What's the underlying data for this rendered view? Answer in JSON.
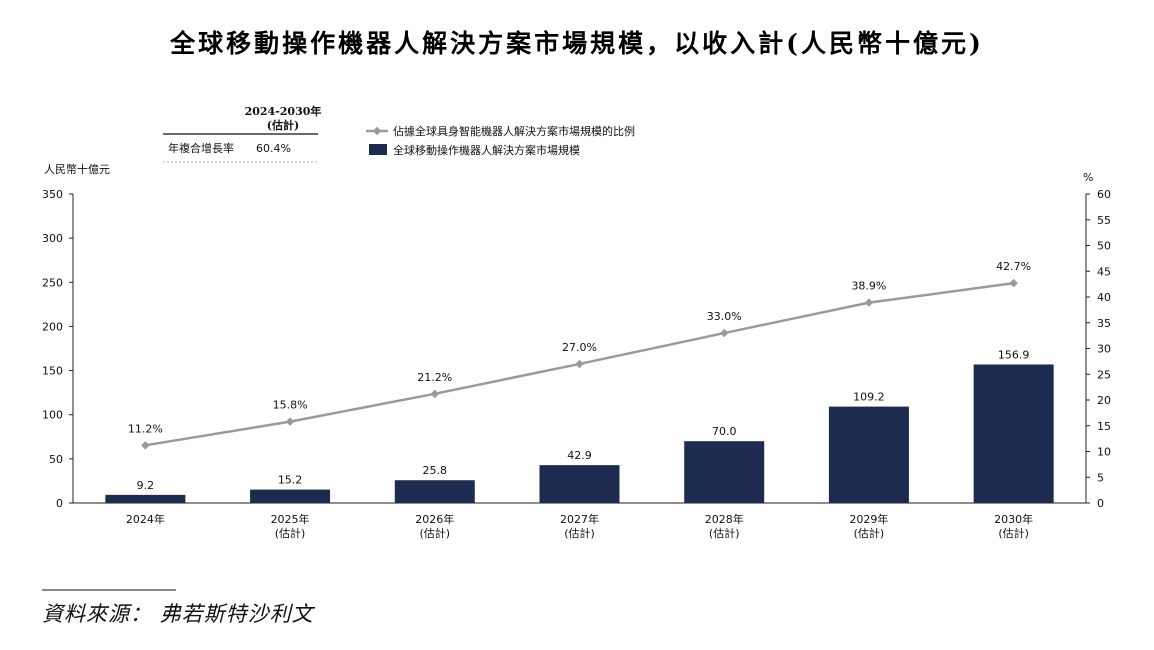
{
  "chart_data": {
    "type": "bar",
    "title": "全球移動操作機器人解決方案市場規模，以收入計(人民幣十億元)",
    "categories": [
      {
        "year": "2024年",
        "note": ""
      },
      {
        "year": "2025年",
        "note": "(估計)"
      },
      {
        "year": "2026年",
        "note": "(估計)"
      },
      {
        "year": "2027年",
        "note": "(估計)"
      },
      {
        "year": "2028年",
        "note": "(估計)"
      },
      {
        "year": "2029年",
        "note": "(估計)"
      },
      {
        "year": "2030年",
        "note": "(估計)"
      }
    ],
    "series": [
      {
        "name": "全球移動操作機器人解決方案市場規模",
        "type": "bar",
        "axis": "left",
        "color": "#1c2b4f",
        "values": [
          9.2,
          15.2,
          25.8,
          42.9,
          70.0,
          109.2,
          156.9
        ],
        "labels": [
          "9.2",
          "15.2",
          "25.8",
          "42.9",
          "70.0",
          "109.2",
          "156.9"
        ]
      },
      {
        "name": "佔據全球具身智能機器人解決方案市場規模的比例",
        "type": "line",
        "axis": "right",
        "color": "#9a9a9a",
        "values": [
          11.2,
          15.8,
          21.2,
          27.0,
          33.0,
          38.9,
          42.7
        ],
        "labels": [
          "11.2%",
          "15.8%",
          "21.2%",
          "27.0%",
          "33.0%",
          "38.9%",
          "42.7%"
        ]
      }
    ],
    "y_left": {
      "label": "人民幣十億元",
      "min": 0,
      "max": 350,
      "ticks": [
        "0",
        "50",
        "100",
        "150",
        "200",
        "250",
        "300",
        "350"
      ]
    },
    "y_right": {
      "label": "%",
      "min": 0,
      "max": 60,
      "ticks": [
        "0",
        "5",
        "10",
        "15",
        "20",
        "25",
        "30",
        "35",
        "40",
        "45",
        "50",
        "55",
        "60"
      ]
    },
    "legend_position": "top-center",
    "grid": false,
    "cagr_table": {
      "header_line1": "2024-2030年",
      "header_line2": "(估計)",
      "row_label": "年複合增長率",
      "row_value": "60.4%"
    }
  },
  "source": "資料來源：  弗若斯特沙利文"
}
